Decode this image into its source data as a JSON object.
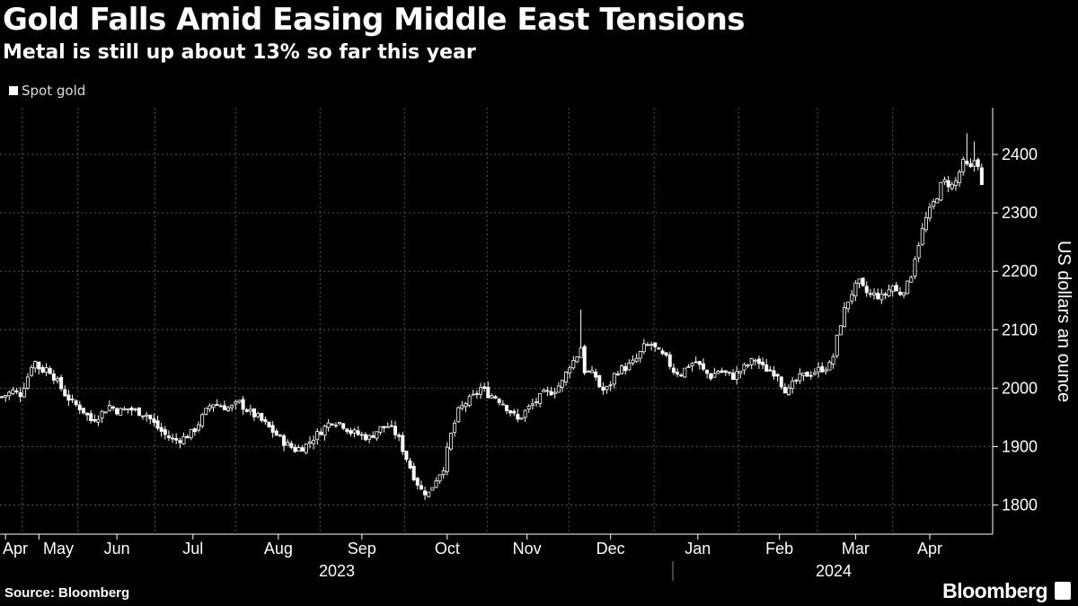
{
  "title": "Gold Falls Amid Easing Middle East Tensions",
  "subtitle": "Metal is still up about 13% so far this year",
  "legend": {
    "label": "Spot gold",
    "color": "#ffffff"
  },
  "source": "Source: Bloomberg",
  "brand": "Bloomberg",
  "chart_data": {
    "type": "candlestick",
    "title": "Gold Falls Amid Easing Middle East Tensions",
    "ylabel": "US dollars an ounce",
    "ylim": [
      1750,
      2480
    ],
    "yticks": [
      1800,
      1900,
      2000,
      2100,
      2200,
      2300,
      2400
    ],
    "x_month_ticks": [
      {
        "label": "Apr",
        "t": 2
      },
      {
        "label": "May",
        "t": 20
      },
      {
        "label": "Jun",
        "t": 62
      },
      {
        "label": "Jul",
        "t": 103
      },
      {
        "label": "Aug",
        "t": 149
      },
      {
        "label": "Sep",
        "t": 194
      },
      {
        "label": "Oct",
        "t": 240
      },
      {
        "label": "Nov",
        "t": 283
      },
      {
        "label": "Dec",
        "t": 328
      },
      {
        "label": "Jan",
        "t": 375
      },
      {
        "label": "Feb",
        "t": 419
      },
      {
        "label": "Mar",
        "t": 460
      },
      {
        "label": "Apr",
        "t": 500
      }
    ],
    "years": [
      {
        "label": "2023",
        "t": 180
      },
      {
        "label": "2024",
        "t": 445
      }
    ],
    "year_divider_t": 360,
    "series": [
      {
        "name": "Spot gold",
        "points": [
          {
            "t": 0,
            "v": 1985
          },
          {
            "t": 6,
            "v": 1995
          },
          {
            "t": 10,
            "v": 1990
          },
          {
            "t": 14,
            "v": 2020
          },
          {
            "t": 17,
            "v": 2050
          },
          {
            "t": 21,
            "v": 2030
          },
          {
            "t": 25,
            "v": 2035
          },
          {
            "t": 29,
            "v": 2015
          },
          {
            "t": 34,
            "v": 1990
          },
          {
            "t": 38,
            "v": 1975
          },
          {
            "t": 43,
            "v": 1965
          },
          {
            "t": 48,
            "v": 1945
          },
          {
            "t": 53,
            "v": 1955
          },
          {
            "t": 58,
            "v": 1970
          },
          {
            "t": 63,
            "v": 1960
          },
          {
            "t": 68,
            "v": 1965
          },
          {
            "t": 73,
            "v": 1960
          },
          {
            "t": 78,
            "v": 1955
          },
          {
            "t": 83,
            "v": 1935
          },
          {
            "t": 88,
            "v": 1920
          },
          {
            "t": 93,
            "v": 1910
          },
          {
            "t": 98,
            "v": 1915
          },
          {
            "t": 103,
            "v": 1925
          },
          {
            "t": 108,
            "v": 1950
          },
          {
            "t": 113,
            "v": 1975
          },
          {
            "t": 118,
            "v": 1970
          },
          {
            "t": 123,
            "v": 1965
          },
          {
            "t": 128,
            "v": 1975
          },
          {
            "t": 133,
            "v": 1960
          },
          {
            "t": 138,
            "v": 1950
          },
          {
            "t": 143,
            "v": 1935
          },
          {
            "t": 148,
            "v": 1920
          },
          {
            "t": 153,
            "v": 1905
          },
          {
            "t": 158,
            "v": 1895
          },
          {
            "t": 163,
            "v": 1900
          },
          {
            "t": 168,
            "v": 1915
          },
          {
            "t": 173,
            "v": 1930
          },
          {
            "t": 178,
            "v": 1945
          },
          {
            "t": 183,
            "v": 1940
          },
          {
            "t": 188,
            "v": 1925
          },
          {
            "t": 193,
            "v": 1920
          },
          {
            "t": 198,
            "v": 1915
          },
          {
            "t": 203,
            "v": 1930
          },
          {
            "t": 208,
            "v": 1935
          },
          {
            "t": 213,
            "v": 1920
          },
          {
            "t": 218,
            "v": 1880
          },
          {
            "t": 222,
            "v": 1850
          },
          {
            "t": 226,
            "v": 1825
          },
          {
            "t": 230,
            "v": 1820
          },
          {
            "t": 234,
            "v": 1845
          },
          {
            "t": 238,
            "v": 1865
          },
          {
            "t": 242,
            "v": 1920
          },
          {
            "t": 246,
            "v": 1960
          },
          {
            "t": 250,
            "v": 1975
          },
          {
            "t": 254,
            "v": 1985
          },
          {
            "t": 258,
            "v": 2000
          },
          {
            "t": 262,
            "v": 1990
          },
          {
            "t": 266,
            "v": 1985
          },
          {
            "t": 270,
            "v": 1975
          },
          {
            "t": 274,
            "v": 1960
          },
          {
            "t": 278,
            "v": 1945
          },
          {
            "t": 282,
            "v": 1960
          },
          {
            "t": 287,
            "v": 1975
          },
          {
            "t": 292,
            "v": 1990
          },
          {
            "t": 297,
            "v": 1995
          },
          {
            "t": 302,
            "v": 2010
          },
          {
            "t": 306,
            "v": 2040
          },
          {
            "t": 309,
            "v": 2050
          },
          {
            "t": 312,
            "v": 2070
          },
          {
            "t": 314,
            "v": 2030
          },
          {
            "t": 317,
            "v": 2025
          },
          {
            "t": 320,
            "v": 2020
          },
          {
            "t": 323,
            "v": 1995
          },
          {
            "t": 327,
            "v": 2000
          },
          {
            "t": 331,
            "v": 2030
          },
          {
            "t": 336,
            "v": 2035
          },
          {
            "t": 341,
            "v": 2045
          },
          {
            "t": 346,
            "v": 2070
          },
          {
            "t": 350,
            "v": 2075
          },
          {
            "t": 354,
            "v": 2060
          },
          {
            "t": 358,
            "v": 2050
          },
          {
            "t": 362,
            "v": 2030
          },
          {
            "t": 366,
            "v": 2025
          },
          {
            "t": 370,
            "v": 2040
          },
          {
            "t": 374,
            "v": 2045
          },
          {
            "t": 378,
            "v": 2030
          },
          {
            "t": 382,
            "v": 2020
          },
          {
            "t": 386,
            "v": 2030
          },
          {
            "t": 390,
            "v": 2025
          },
          {
            "t": 394,
            "v": 2020
          },
          {
            "t": 398,
            "v": 2030
          },
          {
            "t": 402,
            "v": 2040
          },
          {
            "t": 406,
            "v": 2050
          },
          {
            "t": 410,
            "v": 2035
          },
          {
            "t": 414,
            "v": 2030
          },
          {
            "t": 418,
            "v": 2025
          },
          {
            "t": 421,
            "v": 2000
          },
          {
            "t": 424,
            "v": 1995
          },
          {
            "t": 427,
            "v": 2010
          },
          {
            "t": 431,
            "v": 2020
          },
          {
            "t": 435,
            "v": 2025
          },
          {
            "t": 439,
            "v": 2030
          },
          {
            "t": 443,
            "v": 2035
          },
          {
            "t": 447,
            "v": 2040
          },
          {
            "t": 450,
            "v": 2085
          },
          {
            "t": 453,
            "v": 2125
          },
          {
            "t": 456,
            "v": 2150
          },
          {
            "t": 459,
            "v": 2170
          },
          {
            "t": 462,
            "v": 2180
          },
          {
            "t": 465,
            "v": 2165
          },
          {
            "t": 468,
            "v": 2160
          },
          {
            "t": 471,
            "v": 2160
          },
          {
            "t": 474,
            "v": 2155
          },
          {
            "t": 477,
            "v": 2165
          },
          {
            "t": 480,
            "v": 2175
          },
          {
            "t": 483,
            "v": 2160
          },
          {
            "t": 486,
            "v": 2170
          },
          {
            "t": 489,
            "v": 2180
          },
          {
            "t": 492,
            "v": 2225
          },
          {
            "t": 495,
            "v": 2260
          },
          {
            "t": 498,
            "v": 2290
          },
          {
            "t": 501,
            "v": 2310
          },
          {
            "t": 504,
            "v": 2330
          },
          {
            "t": 507,
            "v": 2355
          },
          {
            "t": 510,
            "v": 2350
          },
          {
            "t": 513,
            "v": 2345
          },
          {
            "t": 516,
            "v": 2370
          },
          {
            "t": 518,
            "v": 2385
          },
          {
            "t": 520,
            "v": 2380
          },
          {
            "t": 522,
            "v": 2375
          },
          {
            "t": 524,
            "v": 2390
          },
          {
            "t": 526,
            "v": 2385
          },
          {
            "t": 528,
            "v": 2345
          }
        ]
      }
    ]
  }
}
